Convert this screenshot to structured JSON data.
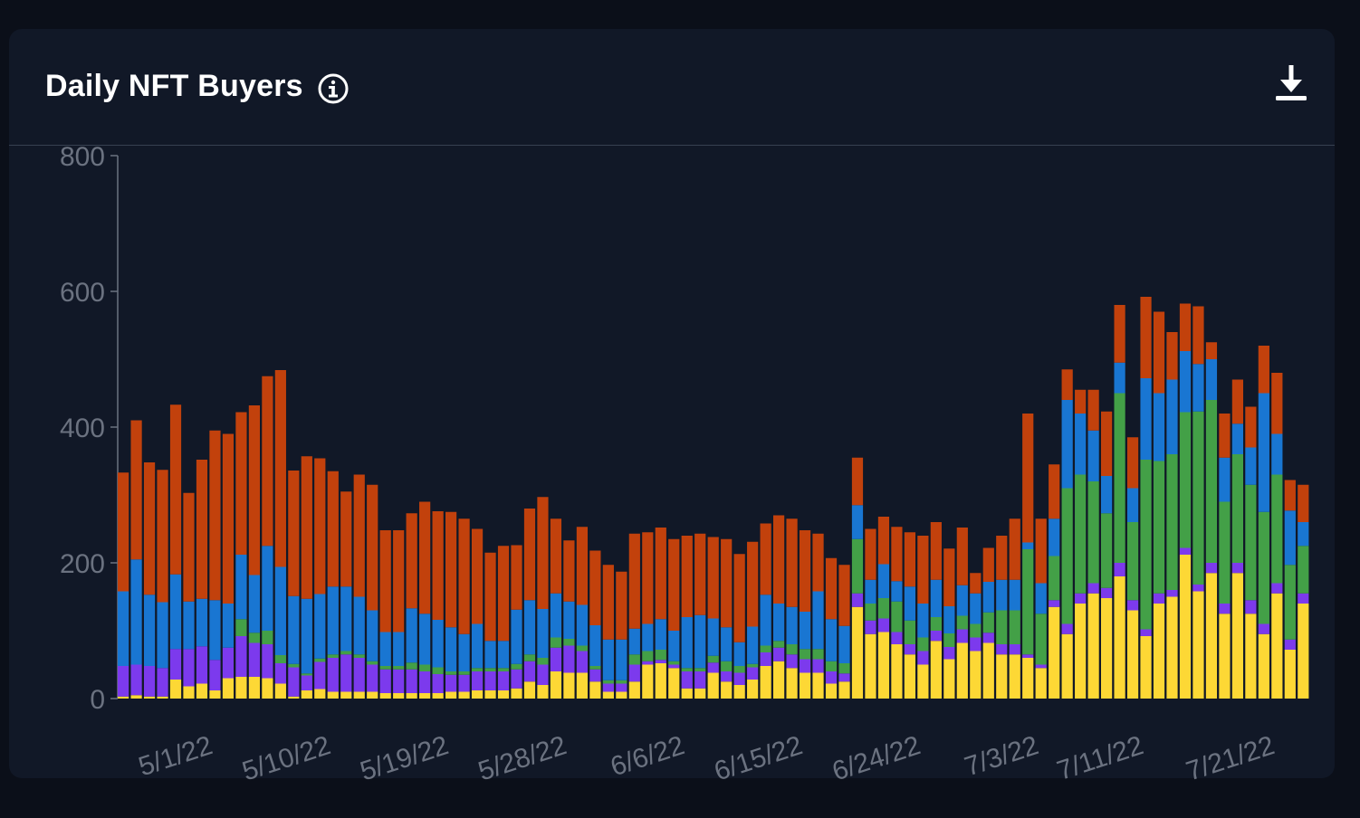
{
  "header": {
    "title": "Daily NFT Buyers",
    "info_icon": "info-circle-icon",
    "download_icon": "download-icon"
  },
  "colors": {
    "background": "#0b0f19",
    "card": "#111827",
    "yellow": "#fdd835",
    "purple": "#7c3aed",
    "green": "#43a047",
    "blue": "#1976d2",
    "orange": "#c2410c",
    "axis_text": "#6b7280"
  },
  "chart_data": {
    "type": "bar",
    "stacked": true,
    "ylim": [
      0,
      800
    ],
    "yticks": [
      0,
      200,
      400,
      600,
      800
    ],
    "xtick_labels": [
      "5/1/22",
      "5/10/22",
      "5/19/22",
      "5/28/22",
      "6/6/22",
      "6/15/22",
      "6/24/22",
      "7/3/22",
      "7/11/22",
      "7/21/22"
    ],
    "xtick_indices": [
      5,
      14,
      23,
      32,
      41,
      50,
      59,
      68,
      76,
      86
    ],
    "series_colors": [
      "#fdd835",
      "#7c3aed",
      "#43a047",
      "#1976d2",
      "#c2410c"
    ],
    "series": [
      {
        "values": [
          3,
          5,
          3,
          3,
          28,
          18,
          22,
          12,
          30,
          32,
          32,
          30,
          22,
          3,
          12,
          14,
          10,
          10,
          10,
          10,
          8,
          8,
          8,
          8,
          8,
          10,
          10,
          12,
          12,
          12,
          15,
          25,
          20,
          40,
          38,
          38,
          25,
          10,
          10,
          25,
          50,
          52,
          45,
          15,
          15,
          38,
          25,
          20,
          28,
          48,
          55,
          45,
          38,
          38,
          22,
          25,
          135,
          95,
          98,
          80,
          65,
          50,
          85,
          58,
          82,
          70,
          82,
          65,
          65,
          60,
          45,
          135,
          95,
          140,
          155,
          148,
          180,
          130,
          92,
          140,
          150,
          212,
          158,
          185,
          125,
          185,
          125,
          95,
          155,
          72,
          140
        ]
      },
      {
        "values": [
          45,
          45,
          45,
          42,
          45,
          55,
          55,
          45,
          45,
          60,
          50,
          50,
          30,
          43,
          22,
          40,
          50,
          55,
          50,
          40,
          35,
          35,
          35,
          32,
          28,
          25,
          25,
          28,
          28,
          28,
          28,
          30,
          30,
          35,
          40,
          32,
          18,
          12,
          12,
          25,
          5,
          5,
          5,
          25,
          25,
          15,
          15,
          18,
          18,
          20,
          20,
          20,
          20,
          20,
          18,
          12,
          20,
          20,
          20,
          18,
          15,
          20,
          15,
          18,
          20,
          20,
          15,
          15,
          15,
          5,
          5,
          10,
          15,
          15,
          15,
          15,
          20,
          15,
          10,
          15,
          10,
          10,
          10,
          15,
          15,
          15,
          20,
          15,
          15,
          15,
          15
        ]
      },
      {
        "values": [
          0,
          0,
          0,
          0,
          0,
          0,
          0,
          0,
          0,
          25,
          15,
          20,
          12,
          5,
          3,
          5,
          5,
          5,
          5,
          5,
          5,
          5,
          10,
          10,
          10,
          5,
          5,
          5,
          5,
          5,
          8,
          10,
          10,
          15,
          10,
          8,
          5,
          5,
          5,
          15,
          15,
          15,
          5,
          5,
          5,
          10,
          15,
          10,
          5,
          10,
          10,
          15,
          15,
          15,
          15,
          15,
          80,
          25,
          30,
          45,
          35,
          20,
          20,
          20,
          20,
          20,
          30,
          50,
          50,
          155,
          75,
          65,
          200,
          175,
          150,
          110,
          250,
          115,
          250,
          195,
          200,
          200,
          255,
          240,
          150,
          160,
          170,
          165,
          160,
          110,
          70
        ]
      },
      {
        "values": [
          110,
          155,
          105,
          97,
          110,
          70,
          70,
          88,
          65,
          95,
          85,
          125,
          130,
          100,
          110,
          95,
          100,
          95,
          85,
          75,
          50,
          50,
          80,
          75,
          70,
          65,
          55,
          65,
          40,
          40,
          80,
          80,
          72,
          65,
          55,
          60,
          60,
          60,
          60,
          38,
          40,
          45,
          45,
          75,
          78,
          55,
          50,
          35,
          55,
          75,
          55,
          55,
          55,
          85,
          62,
          55,
          50,
          35,
          50,
          30,
          50,
          50,
          55,
          40,
          45,
          45,
          45,
          45,
          45,
          10,
          45,
          55,
          130,
          90,
          75,
          55,
          45,
          50,
          120,
          100,
          110,
          90,
          70,
          60,
          65,
          45,
          55,
          175,
          60,
          80,
          35
        ]
      },
      {
        "values": [
          175,
          205,
          195,
          195,
          250,
          160,
          205,
          250,
          250,
          210,
          250,
          250,
          290,
          185,
          210,
          200,
          170,
          140,
          180,
          185,
          150,
          150,
          140,
          165,
          160,
          170,
          170,
          140,
          130,
          140,
          95,
          135,
          165,
          110,
          90,
          115,
          110,
          110,
          100,
          140,
          135,
          135,
          135,
          120,
          120,
          120,
          130,
          130,
          125,
          105,
          130,
          130,
          120,
          85,
          90,
          90,
          70,
          75,
          70,
          80,
          80,
          100,
          85,
          85,
          85,
          30,
          50,
          65,
          90,
          190,
          95,
          80,
          45,
          35,
          60,
          95,
          85,
          75,
          120,
          120,
          70,
          70,
          85,
          25,
          65,
          65,
          60,
          70,
          90,
          45,
          55
        ]
      }
    ]
  }
}
